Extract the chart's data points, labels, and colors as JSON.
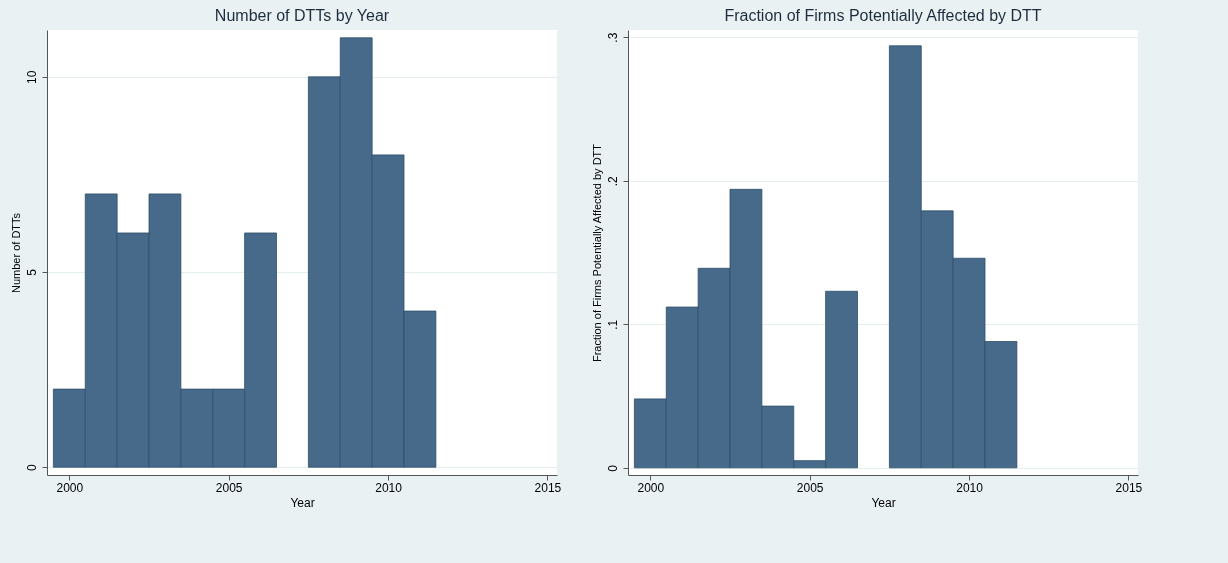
{
  "chart_data": [
    {
      "type": "histogram",
      "title": "Number of DTTs by Year",
      "xlabel": "Year",
      "ylabel": "Number of DTTs",
      "bins": [
        1999.5,
        2000.5,
        2001.5,
        2002.5,
        2003.5,
        2004.5,
        2005.5,
        2006.5,
        2007.5,
        2008.5,
        2009.5,
        2010.5,
        2011.5
      ],
      "values": [
        2,
        7,
        6,
        7,
        2,
        2,
        6,
        0,
        10,
        11,
        8,
        4
      ],
      "color": "#476a8b",
      "xlim": [
        1999.3,
        2015.3
      ],
      "xticks": [
        2000,
        2005,
        2010,
        2015
      ],
      "ylim": [
        -0.2,
        11.2
      ],
      "yticks": [
        0,
        5,
        10
      ],
      "grid": "y"
    },
    {
      "type": "histogram",
      "title": "Fraction of Firms Potentially Affected by DTT",
      "xlabel": "Year",
      "ylabel": "Fraction of Firms Potentially Affected by DTT",
      "bins": [
        1999.5,
        2000.5,
        2001.5,
        2002.5,
        2003.5,
        2004.5,
        2005.5,
        2006.5,
        2007.5,
        2008.5,
        2009.5,
        2010.5,
        2011.5
      ],
      "values": [
        0.048,
        0.112,
        0.139,
        0.194,
        0.043,
        0.005,
        0.123,
        0,
        0.294,
        0.179,
        0.146,
        0.088
      ],
      "color": "#476a8b",
      "xlim": [
        1999.3,
        2015.3
      ],
      "xticks": [
        2000,
        2005,
        2010,
        2015
      ],
      "ylim": [
        -0.005,
        0.305
      ],
      "yticks": [
        0,
        {
          "value": 0.1,
          "label": ".1"
        },
        {
          "value": 0.2,
          "label": ".2"
        },
        {
          "value": 0.3,
          "label": ".3"
        }
      ],
      "grid": "y"
    }
  ]
}
